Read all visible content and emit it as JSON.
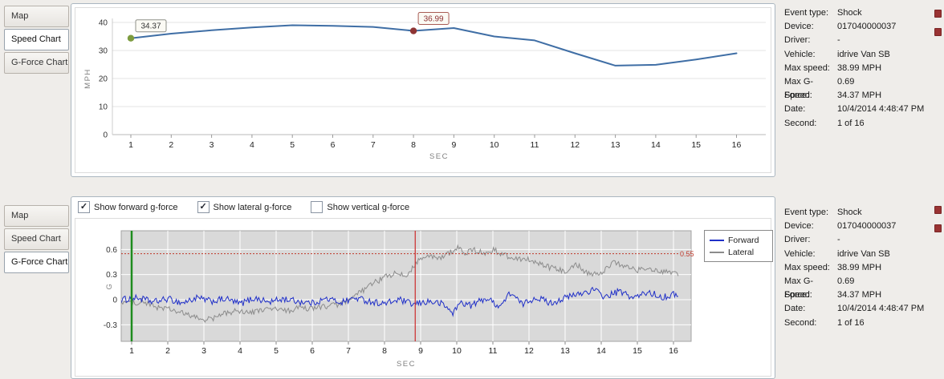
{
  "tabs": {
    "items": [
      {
        "label": "Map"
      },
      {
        "label": "Speed Chart"
      },
      {
        "label": "G-Force Chart"
      }
    ]
  },
  "panels": {
    "top_selected_index": 1,
    "bottom_selected_index": 2
  },
  "info_panel": {
    "rows": [
      {
        "label": "Event type:",
        "value": "Shock"
      },
      {
        "label": "Device:",
        "value": "017040000037"
      },
      {
        "label": "Driver:",
        "value": "-"
      },
      {
        "label": "Vehicle:",
        "value": "idrive Van SB"
      },
      {
        "label": "Max speed:",
        "value": "38.99 MPH"
      },
      {
        "label": "Max G-Force:",
        "value": "0.69"
      },
      {
        "label": "Speed:",
        "value": "34.37 MPH"
      },
      {
        "label": "Date:",
        "value": "10/4/2014 4:48:47 PM"
      },
      {
        "label": "Second:",
        "value": "1 of 16"
      }
    ]
  },
  "gforce_controls": {
    "checkboxes": [
      {
        "label": "Show forward g-force",
        "checked": true
      },
      {
        "label": "Show lateral g-force",
        "checked": true
      },
      {
        "label": "Show vertical g-force",
        "checked": false
      }
    ]
  },
  "chart_data": [
    {
      "type": "line",
      "title": "Speed Chart",
      "xlabel": "SEC",
      "ylabel": "MPH",
      "x": [
        1,
        2,
        3,
        4,
        5,
        6,
        7,
        8,
        9,
        10,
        11,
        12,
        13,
        14,
        15,
        16
      ],
      "values": [
        34.37,
        36.0,
        37.2,
        38.2,
        38.99,
        38.8,
        38.4,
        36.99,
        38.0,
        35.0,
        33.6,
        29.0,
        24.6,
        24.9,
        26.8,
        29.0
      ],
      "ylim": [
        0,
        42
      ],
      "yticks": [
        0,
        10,
        20,
        30,
        40
      ],
      "line_color": "#3f6ea5",
      "grid": true,
      "markers": [
        {
          "x": 1,
          "y": 34.37,
          "label": "34.37",
          "color": "#7d9c40",
          "box_border": "#8f9089",
          "label_color": "#333333"
        },
        {
          "x": 8,
          "y": 36.99,
          "label": "36.99",
          "color": "#8e3434",
          "box_border": "#a85c54",
          "label_color": "#8e3434"
        }
      ]
    },
    {
      "type": "line",
      "title": "G-Force Chart",
      "xlabel": "SEC",
      "ylabel": "G",
      "xticks": [
        1,
        2,
        3,
        4,
        5,
        6,
        7,
        8,
        9,
        10,
        11,
        12,
        13,
        14,
        15,
        16
      ],
      "yticks": [
        -0.3,
        0,
        0.3,
        0.6
      ],
      "ylim": [
        -0.5,
        0.82
      ],
      "plot_bg": "#d9d9d9",
      "grid": true,
      "legend_position": "right",
      "threshold": {
        "y": 0.55,
        "label": "0.55",
        "color": "#c0392b"
      },
      "vlines": [
        {
          "x": 1,
          "color": "#1e8c1e",
          "width": 2.5,
          "name": "current-second-marker"
        },
        {
          "x": 8.85,
          "color": "#cc2a2a",
          "width": 1.2,
          "name": "shock-event-marker"
        }
      ],
      "series": [
        {
          "name": "Forward",
          "color": "#2030c8",
          "noise": 0.04,
          "envelope": [
            [
              0.7,
              0
            ],
            [
              1.2,
              0.02
            ],
            [
              1.6,
              -0.03
            ],
            [
              2,
              0.01
            ],
            [
              2.4,
              -0.04
            ],
            [
              2.8,
              0.02
            ],
            [
              3.2,
              -0.02
            ],
            [
              3.6,
              0.01
            ],
            [
              4,
              -0.05
            ],
            [
              4.4,
              0.02
            ],
            [
              4.8,
              -0.03
            ],
            [
              5.2,
              0.01
            ],
            [
              5.6,
              -0.02
            ],
            [
              6,
              -0.04
            ],
            [
              6.4,
              0.01
            ],
            [
              6.8,
              -0.03
            ],
            [
              7.2,
              0.02
            ],
            [
              7.6,
              -0.02
            ],
            [
              8,
              -0.05
            ],
            [
              8.4,
              0
            ],
            [
              8.8,
              -0.06
            ],
            [
              9.2,
              -0.02
            ],
            [
              9.6,
              -0.05
            ],
            [
              9.9,
              -0.16
            ],
            [
              10.1,
              -0.03
            ],
            [
              10.4,
              -0.07
            ],
            [
              10.8,
              0.02
            ],
            [
              11.2,
              -0.08
            ],
            [
              11.5,
              0.09
            ],
            [
              11.8,
              -0.06
            ],
            [
              12.2,
              0.03
            ],
            [
              12.6,
              -0.04
            ],
            [
              13,
              0.02
            ],
            [
              13.4,
              0.07
            ],
            [
              13.8,
              0.12
            ],
            [
              14.1,
              0.03
            ],
            [
              14.5,
              0.1
            ],
            [
              14.9,
              0.02
            ],
            [
              15.3,
              0.09
            ],
            [
              15.7,
              0.03
            ],
            [
              16.1,
              0.07
            ]
          ]
        },
        {
          "name": "Lateral",
          "color": "#8c8c8c",
          "noise": 0.035,
          "envelope": [
            [
              0.7,
              -0.02
            ],
            [
              1,
              -0.04
            ],
            [
              1.3,
              -0.02
            ],
            [
              1.6,
              -0.08
            ],
            [
              2,
              -0.11
            ],
            [
              2.3,
              -0.15
            ],
            [
              2.6,
              -0.19
            ],
            [
              3,
              -0.24
            ],
            [
              3.3,
              -0.22
            ],
            [
              3.6,
              -0.16
            ],
            [
              4,
              -0.13
            ],
            [
              4.3,
              -0.16
            ],
            [
              4.6,
              -0.12
            ],
            [
              5,
              -0.11
            ],
            [
              5.3,
              -0.14
            ],
            [
              5.6,
              -0.1
            ],
            [
              6,
              -0.11
            ],
            [
              6.3,
              -0.08
            ],
            [
              6.6,
              -0.07
            ],
            [
              7,
              -0.02
            ],
            [
              7.3,
              0.08
            ],
            [
              7.6,
              0.17
            ],
            [
              8,
              0.27
            ],
            [
              8.3,
              0.31
            ],
            [
              8.6,
              0.28
            ],
            [
              8.9,
              0.46
            ],
            [
              9.2,
              0.52
            ],
            [
              9.5,
              0.49
            ],
            [
              9.8,
              0.56
            ],
            [
              10,
              0.63
            ],
            [
              10.2,
              0.56
            ],
            [
              10.5,
              0.59
            ],
            [
              10.8,
              0.55
            ],
            [
              11,
              0.6
            ],
            [
              11.3,
              0.53
            ],
            [
              11.6,
              0.5
            ],
            [
              12,
              0.48
            ],
            [
              12.3,
              0.42
            ],
            [
              12.6,
              0.38
            ],
            [
              13,
              0.34
            ],
            [
              13.3,
              0.43
            ],
            [
              13.6,
              0.32
            ],
            [
              14,
              0.3
            ],
            [
              14.3,
              0.45
            ],
            [
              14.6,
              0.41
            ],
            [
              15,
              0.35
            ],
            [
              15.3,
              0.39
            ],
            [
              15.6,
              0.32
            ],
            [
              16,
              0.33
            ],
            [
              16.15,
              0.3
            ]
          ]
        }
      ]
    }
  ]
}
